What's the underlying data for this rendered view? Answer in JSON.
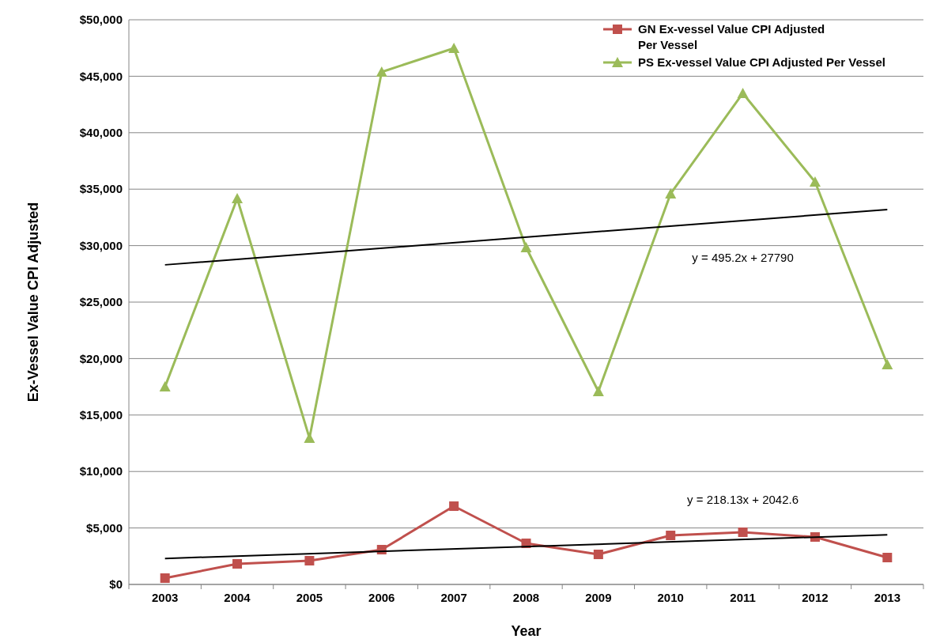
{
  "chart_data": {
    "type": "line",
    "xlabel": "Year",
    "ylabel": "Ex-Vessel Value CPI Adjusted",
    "categories": [
      "2003",
      "2004",
      "2005",
      "2006",
      "2007",
      "2008",
      "2009",
      "2010",
      "2011",
      "2012",
      "2013"
    ],
    "ylim": [
      0,
      50000
    ],
    "yticks": [
      {
        "value": 0,
        "label": "$0"
      },
      {
        "value": 5000,
        "label": "$5,000"
      },
      {
        "value": 10000,
        "label": "$10,000"
      },
      {
        "value": 15000,
        "label": "$15,000"
      },
      {
        "value": 20000,
        "label": "$20,000"
      },
      {
        "value": 25000,
        "label": "$25,000"
      },
      {
        "value": 30000,
        "label": "$30,000"
      },
      {
        "value": 35000,
        "label": "$35,000"
      },
      {
        "value": 40000,
        "label": "$40,000"
      },
      {
        "value": 45000,
        "label": "$45,000"
      },
      {
        "value": 50000,
        "label": "$50,000"
      }
    ],
    "grid": "y",
    "legend": "top right",
    "series": [
      {
        "name": "GN Ex-vessel Value CPI Adjusted Per Vessel",
        "color": "#c0504d",
        "marker": "square",
        "values": [
          560,
          1820,
          2100,
          3080,
          6930,
          3640,
          2660,
          4340,
          4620,
          4200,
          2380
        ]
      },
      {
        "name": "PS Ex-vessel Value CPI Adjusted Per Vessel",
        "color": "#9bbb59",
        "marker": "triangle",
        "values": [
          17500,
          34170,
          12960,
          45380,
          47480,
          29830,
          17090,
          34600,
          43490,
          35640,
          19470
        ]
      },
      {
        "type": "line",
        "color": "#000000",
        "marker": "none",
        "values": [
          28300,
          null,
          null,
          null,
          null,
          null,
          null,
          null,
          null,
          null,
          33200
        ]
      },
      {
        "type": "line",
        "color": "#000000",
        "marker": "none",
        "values": [
          2300,
          null,
          null,
          null,
          null,
          null,
          null,
          null,
          null,
          null,
          4400
        ]
      }
    ],
    "annotations": [
      "y = 495.2x + 27790",
      "y = 218.13x + 2042.6"
    ]
  }
}
